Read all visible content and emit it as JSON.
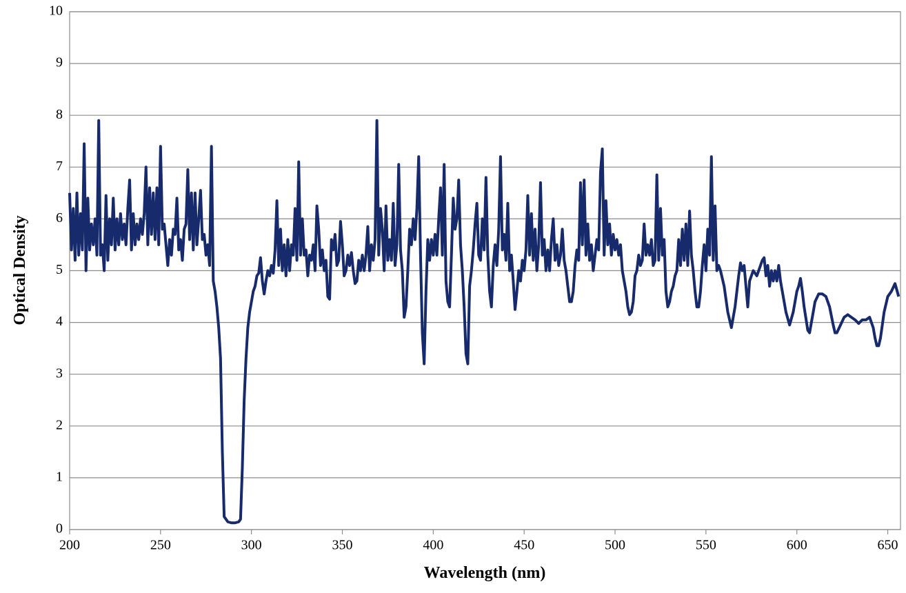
{
  "chart_data": {
    "type": "line",
    "x_label": "Wavelength (nm)",
    "y_label": "Optical Density",
    "xlim": [
      200,
      657
    ],
    "ylim": [
      0,
      10
    ],
    "xticks": [
      200,
      250,
      300,
      350,
      400,
      450,
      500,
      550,
      600,
      650
    ],
    "yticks": [
      0,
      1,
      2,
      3,
      4,
      5,
      6,
      7,
      8,
      9,
      10
    ],
    "grid": true,
    "x": [
      200,
      201,
      202,
      203,
      204,
      205,
      206,
      207,
      208,
      209,
      210,
      211,
      212,
      213,
      214,
      215,
      216,
      217,
      218,
      219,
      220,
      221,
      222,
      223,
      224,
      225,
      226,
      227,
      228,
      229,
      230,
      231,
      232,
      233,
      234,
      235,
      236,
      237,
      238,
      239,
      240,
      241,
      242,
      243,
      244,
      245,
      246,
      247,
      248,
      249,
      250,
      251,
      252,
      253,
      254,
      255,
      256,
      257,
      258,
      259,
      260,
      261,
      262,
      263,
      264,
      265,
      266,
      267,
      268,
      269,
      270,
      271,
      272,
      273,
      274,
      275,
      276,
      277,
      278,
      279,
      280,
      281,
      282,
      283,
      284,
      285,
      287,
      289,
      291,
      293,
      294,
      295,
      296,
      297,
      298,
      299,
      300,
      301,
      302,
      303,
      304,
      305,
      306,
      307,
      308,
      309,
      310,
      311,
      312,
      313,
      314,
      315,
      316,
      317,
      318,
      319,
      320,
      321,
      322,
      323,
      324,
      325,
      326,
      327,
      328,
      329,
      330,
      331,
      332,
      333,
      334,
      335,
      336,
      337,
      338,
      339,
      340,
      341,
      342,
      343,
      344,
      345,
      346,
      347,
      348,
      349,
      350,
      351,
      352,
      353,
      354,
      355,
      356,
      357,
      358,
      359,
      360,
      361,
      362,
      363,
      364,
      365,
      366,
      367,
      368,
      369,
      370,
      371,
      372,
      373,
      374,
      375,
      376,
      377,
      378,
      379,
      380,
      381,
      382,
      383,
      384,
      385,
      386,
      387,
      388,
      389,
      390,
      391,
      392,
      393,
      394,
      395,
      396,
      397,
      398,
      399,
      400,
      401,
      402,
      403,
      404,
      405,
      406,
      407,
      408,
      409,
      410,
      411,
      412,
      413,
      414,
      415,
      416,
      417,
      418,
      419,
      420,
      421,
      422,
      423,
      424,
      425,
      426,
      427,
      428,
      429,
      430,
      431,
      432,
      433,
      434,
      435,
      436,
      437,
      438,
      439,
      440,
      441,
      442,
      443,
      444,
      445,
      446,
      447,
      448,
      449,
      450,
      451,
      452,
      453,
      454,
      455,
      456,
      457,
      458,
      459,
      460,
      461,
      462,
      463,
      464,
      465,
      466,
      467,
      468,
      469,
      470,
      471,
      472,
      473,
      474,
      475,
      476,
      477,
      478,
      479,
      480,
      481,
      482,
      483,
      484,
      485,
      486,
      487,
      488,
      489,
      490,
      491,
      492,
      493,
      494,
      495,
      496,
      497,
      498,
      499,
      500,
      501,
      502,
      503,
      504,
      505,
      506,
      507,
      508,
      509,
      510,
      511,
      512,
      513,
      514,
      515,
      516,
      517,
      518,
      519,
      520,
      521,
      522,
      523,
      524,
      525,
      526,
      527,
      528,
      529,
      530,
      531,
      532,
      533,
      534,
      535,
      536,
      537,
      538,
      539,
      540,
      541,
      542,
      543,
      544,
      545,
      546,
      547,
      548,
      549,
      550,
      551,
      552,
      553,
      554,
      555,
      556,
      557,
      558,
      560,
      562,
      564,
      566,
      568,
      569,
      570,
      571,
      572,
      573,
      574,
      576,
      578,
      580,
      581,
      582,
      583,
      584,
      585,
      586,
      587,
      588,
      589,
      590,
      591,
      592,
      594,
      596,
      598,
      600,
      601,
      602,
      603,
      604,
      606,
      607,
      608,
      610,
      612,
      614,
      616,
      618,
      620,
      621,
      622,
      624,
      626,
      628,
      630,
      632,
      634,
      636,
      638,
      640,
      642,
      643,
      644,
      645,
      646,
      648,
      650,
      652,
      654,
      656
    ],
    "series": [
      {
        "color": "#172a6b",
        "values": [
          6.5,
          5.4,
          6.2,
          5.2,
          6.5,
          5.3,
          6.1,
          5.4,
          7.45,
          5.0,
          6.4,
          5.4,
          5.9,
          5.5,
          6.0,
          5.3,
          7.9,
          5.3,
          5.5,
          5.0,
          6.45,
          5.2,
          6.0,
          5.5,
          6.4,
          5.4,
          6.0,
          5.5,
          6.1,
          5.6,
          5.9,
          5.5,
          6.2,
          6.75,
          5.4,
          6.1,
          5.5,
          5.9,
          5.6,
          6.0,
          5.7,
          6.1,
          7.0,
          5.5,
          6.6,
          5.7,
          6.5,
          5.6,
          6.6,
          5.5,
          7.4,
          5.8,
          5.9,
          5.5,
          5.1,
          5.6,
          5.3,
          5.8,
          5.7,
          6.4,
          5.4,
          5.6,
          5.2,
          5.8,
          5.9,
          6.95,
          5.6,
          6.5,
          5.4,
          6.5,
          5.5,
          6.0,
          6.55,
          5.6,
          5.7,
          5.3,
          5.5,
          5.1,
          7.4,
          4.8,
          4.6,
          4.3,
          3.9,
          3.3,
          1.5,
          0.25,
          0.15,
          0.13,
          0.13,
          0.15,
          0.2,
          1.2,
          2.5,
          3.3,
          3.9,
          4.2,
          4.4,
          4.6,
          4.7,
          4.9,
          4.95,
          5.25,
          4.8,
          4.55,
          4.8,
          5.0,
          4.9,
          5.1,
          4.95,
          5.4,
          6.35,
          5.1,
          5.8,
          5.0,
          5.5,
          4.9,
          5.6,
          5.0,
          5.5,
          5.3,
          6.2,
          5.2,
          7.1,
          5.3,
          6.0,
          5.3,
          5.4,
          4.9,
          5.3,
          5.2,
          5.5,
          5.0,
          6.25,
          5.8,
          5.1,
          5.4,
          5.0,
          5.2,
          4.5,
          4.45,
          5.6,
          5.4,
          5.7,
          5.1,
          5.2,
          5.95,
          5.5,
          4.9,
          5.0,
          5.3,
          5.1,
          5.35,
          5.0,
          4.75,
          4.8,
          5.2,
          5.0,
          5.3,
          5.0,
          5.3,
          5.85,
          5.0,
          5.5,
          5.2,
          5.6,
          7.9,
          5.3,
          6.2,
          5.8,
          5.0,
          6.25,
          5.2,
          5.6,
          5.2,
          6.3,
          5.1,
          5.5,
          7.05,
          5.4,
          5.0,
          4.1,
          4.3,
          5.0,
          5.8,
          5.5,
          6.0,
          5.6,
          6.2,
          7.2,
          5.3,
          3.8,
          3.2,
          4.6,
          5.6,
          5.2,
          5.6,
          5.3,
          5.7,
          5.3,
          6.0,
          6.6,
          5.3,
          7.05,
          4.8,
          4.4,
          4.3,
          5.3,
          6.4,
          5.8,
          6.0,
          6.75,
          5.5,
          5.0,
          4.3,
          3.4,
          3.2,
          4.7,
          5.0,
          5.4,
          5.9,
          6.3,
          5.3,
          5.2,
          6.0,
          5.4,
          6.8,
          5.3,
          4.6,
          4.3,
          5.1,
          5.5,
          5.1,
          5.8,
          7.2,
          5.4,
          5.7,
          5.2,
          6.3,
          5.0,
          5.3,
          4.8,
          4.25,
          4.6,
          5.0,
          4.8,
          5.2,
          5.0,
          5.4,
          6.45,
          5.3,
          6.1,
          5.2,
          5.8,
          5.0,
          5.5,
          6.7,
          5.3,
          5.6,
          5.0,
          5.4,
          5.0,
          5.6,
          6.0,
          5.2,
          5.5,
          5.1,
          5.3,
          5.8,
          5.2,
          5.0,
          4.7,
          4.4,
          4.4,
          4.6,
          5.1,
          5.4,
          5.2,
          6.7,
          5.5,
          6.75,
          5.3,
          5.9,
          5.2,
          5.5,
          5.0,
          5.3,
          5.6,
          5.4,
          6.9,
          7.35,
          5.3,
          6.35,
          5.5,
          5.9,
          5.3,
          5.7,
          5.4,
          5.6,
          5.3,
          5.5,
          5.0,
          4.8,
          4.6,
          4.3,
          4.15,
          4.2,
          4.4,
          4.9,
          5.0,
          5.3,
          5.1,
          5.2,
          5.9,
          5.3,
          5.5,
          5.3,
          5.6,
          5.1,
          5.2,
          6.85,
          5.2,
          6.2,
          5.3,
          5.6,
          4.6,
          4.3,
          4.4,
          4.6,
          4.7,
          4.9,
          5.0,
          5.6,
          5.1,
          5.8,
          5.2,
          5.9,
          5.1,
          6.15,
          5.3,
          5.0,
          4.6,
          4.3,
          4.3,
          4.6,
          5.1,
          5.5,
          5.0,
          5.8,
          5.3,
          7.2,
          5.2,
          6.25,
          5.0,
          5.1,
          5.0,
          4.7,
          4.2,
          3.9,
          4.3,
          4.9,
          5.15,
          5.0,
          5.1,
          4.7,
          4.3,
          4.8,
          5.0,
          4.9,
          5.1,
          5.2,
          5.25,
          4.9,
          5.1,
          4.7,
          5.0,
          4.8,
          5.0,
          4.8,
          5.1,
          4.8,
          4.6,
          4.2,
          3.95,
          4.2,
          4.6,
          4.7,
          4.85,
          4.6,
          4.3,
          3.85,
          3.8,
          4.0,
          4.4,
          4.55,
          4.55,
          4.5,
          4.3,
          3.95,
          3.8,
          3.8,
          3.95,
          4.1,
          4.15,
          4.1,
          4.05,
          3.98,
          4.05,
          4.05,
          4.1,
          3.9,
          3.7,
          3.55,
          3.55,
          3.7,
          4.2,
          4.5,
          4.6,
          4.75,
          4.5
        ]
      }
    ]
  }
}
